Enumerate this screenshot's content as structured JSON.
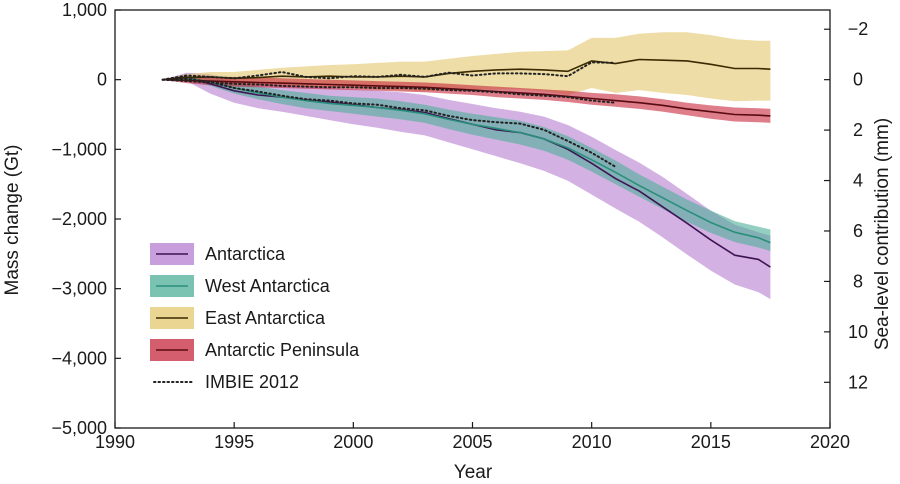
{
  "chart_data": {
    "type": "area",
    "xlabel": "Year",
    "ylabel": "Mass change (Gt)",
    "y2label": "Sea-level contribution (mm)",
    "xlim": [
      1990,
      2020
    ],
    "ylim": [
      -5000,
      1000
    ],
    "x_ticks": [
      1990,
      1995,
      2000,
      2005,
      2010,
      2015,
      2020
    ],
    "y_ticks": [
      1000,
      0,
      -1000,
      -2000,
      -3000,
      -4000,
      -5000
    ],
    "y_tick_labels": [
      "1,000",
      "0",
      "−1,000",
      "−2,000",
      "−3,000",
      "−4,000",
      "−5,000"
    ],
    "y2_ticks": [
      -2,
      0,
      2,
      4,
      6,
      8,
      10,
      12
    ],
    "y2_tick_labels": [
      "−2",
      "0",
      "2",
      "4",
      "6",
      "8",
      "10",
      "12"
    ],
    "y2_gt_per_mm": -362,
    "grid": false,
    "legend_position": "bottom-left",
    "series": [
      {
        "name": "Antarctica",
        "color": "#3d1554",
        "band_color": "#b57fd0",
        "x": [
          1992,
          1993,
          1994,
          1995,
          1996,
          1997,
          1998,
          1999,
          2000,
          2001,
          2002,
          2003,
          2004,
          2005,
          2006,
          2007,
          2008,
          2009,
          2010,
          2011,
          2012,
          2013,
          2014,
          2015,
          2016,
          2017,
          2017.5
        ],
        "values": [
          0,
          40,
          -60,
          -160,
          -220,
          -250,
          -290,
          -320,
          -360,
          -400,
          -430,
          -470,
          -560,
          -640,
          -720,
          -760,
          -850,
          -1000,
          -1200,
          -1420,
          -1600,
          -1830,
          -2060,
          -2300,
          -2520,
          -2580,
          -2690
        ],
        "lower": [
          0,
          -20,
          -200,
          -330,
          -410,
          -460,
          -520,
          -580,
          -640,
          -690,
          -750,
          -800,
          -900,
          -1000,
          -1100,
          -1200,
          -1310,
          -1450,
          -1650,
          -1850,
          -2040,
          -2270,
          -2510,
          -2740,
          -2940,
          -3050,
          -3150
        ],
        "upper": [
          0,
          100,
          80,
          0,
          -40,
          -60,
          -90,
          -120,
          -140,
          -160,
          -180,
          -220,
          -290,
          -350,
          -410,
          -460,
          -530,
          -650,
          -820,
          -1010,
          -1190,
          -1400,
          -1640,
          -1880,
          -2080,
          -2190,
          -2240
        ]
      },
      {
        "name": "West Antarctica",
        "color": "#2a8f7a",
        "band_color": "#4eaf9a",
        "x": [
          1992,
          1993,
          1994,
          1995,
          1996,
          1997,
          1998,
          1999,
          2000,
          2001,
          2002,
          2003,
          2004,
          2005,
          2006,
          2007,
          2008,
          2009,
          2010,
          2011,
          2012,
          2013,
          2014,
          2015,
          2016,
          2017,
          2017.5
        ],
        "values": [
          0,
          20,
          -30,
          -120,
          -190,
          -250,
          -300,
          -340,
          -370,
          -400,
          -440,
          -490,
          -570,
          -640,
          -700,
          -760,
          -850,
          -980,
          -1150,
          -1330,
          -1520,
          -1700,
          -1880,
          -2050,
          -2190,
          -2270,
          -2340
        ],
        "lower": [
          0,
          -10,
          -90,
          -200,
          -280,
          -350,
          -410,
          -450,
          -490,
          -530,
          -570,
          -620,
          -710,
          -790,
          -860,
          -930,
          -1020,
          -1150,
          -1320,
          -1500,
          -1680,
          -1860,
          -2040,
          -2200,
          -2330,
          -2410,
          -2460
        ],
        "upper": [
          0,
          50,
          30,
          -40,
          -100,
          -150,
          -190,
          -230,
          -250,
          -270,
          -310,
          -360,
          -430,
          -490,
          -540,
          -590,
          -680,
          -810,
          -980,
          -1160,
          -1360,
          -1540,
          -1720,
          -1880,
          -2030,
          -2110,
          -2150
        ]
      },
      {
        "name": "East Antarctica",
        "color": "#3a2a00",
        "band_color": "#e3c76d",
        "x": [
          1992,
          1993,
          1994,
          1995,
          1996,
          1997,
          1998,
          1999,
          2000,
          2001,
          2002,
          2003,
          2004,
          2005,
          2006,
          2007,
          2008,
          2009,
          2010,
          2011,
          2012,
          2013,
          2014,
          2015,
          2016,
          2017,
          2017.5
        ],
        "values": [
          0,
          30,
          40,
          20,
          30,
          50,
          40,
          50,
          40,
          40,
          50,
          40,
          90,
          120,
          140,
          150,
          140,
          120,
          270,
          230,
          290,
          280,
          270,
          220,
          160,
          160,
          150
        ],
        "lower": [
          0,
          -20,
          -40,
          -70,
          -80,
          -70,
          -100,
          -110,
          -120,
          -140,
          -150,
          -170,
          -150,
          -140,
          -140,
          -140,
          -170,
          -220,
          -120,
          -190,
          -150,
          -190,
          -220,
          -270,
          -310,
          -300,
          -300
        ],
        "upper": [
          0,
          80,
          110,
          110,
          140,
          170,
          190,
          210,
          220,
          240,
          260,
          260,
          300,
          340,
          370,
          400,
          410,
          420,
          600,
          600,
          660,
          680,
          680,
          640,
          580,
          560,
          560
        ]
      },
      {
        "name": "Antarctic Peninsula",
        "color": "#5a0a12",
        "band_color": "#c6283c",
        "x": [
          1992,
          1993,
          1994,
          1995,
          1996,
          1997,
          1998,
          1999,
          2000,
          2001,
          2002,
          2003,
          2004,
          2005,
          2006,
          2007,
          2008,
          2009,
          2010,
          2011,
          2012,
          2013,
          2014,
          2015,
          2016,
          2017,
          2017.5
        ],
        "values": [
          0,
          -10,
          -20,
          -30,
          -40,
          -50,
          -60,
          -70,
          -80,
          -90,
          -100,
          -110,
          -130,
          -150,
          -170,
          -190,
          -210,
          -240,
          -270,
          -300,
          -330,
          -370,
          -420,
          -460,
          -500,
          -510,
          -520
        ],
        "lower": [
          0,
          -50,
          -80,
          -100,
          -110,
          -120,
          -130,
          -140,
          -150,
          -160,
          -170,
          -180,
          -200,
          -220,
          -250,
          -270,
          -290,
          -320,
          -360,
          -390,
          -420,
          -460,
          -510,
          -560,
          -600,
          -610,
          -620
        ],
        "upper": [
          0,
          30,
          40,
          40,
          30,
          20,
          10,
          0,
          -10,
          -20,
          -30,
          -40,
          -60,
          -80,
          -100,
          -120,
          -140,
          -160,
          -190,
          -210,
          -240,
          -280,
          -330,
          -370,
          -400,
          -410,
          -420
        ]
      },
      {
        "name": "IMBIE 2012",
        "color": "#222222",
        "style": "dotted",
        "subseries": [
          {
            "x": [
              1992,
              1993,
              1994,
              1995,
              1996,
              1997,
              1998,
              1999,
              2000,
              2001,
              2002,
              2003,
              2004,
              2005,
              2006,
              2007,
              2008,
              2009,
              2010,
              2011
            ],
            "values": [
              0,
              60,
              40,
              20,
              60,
              110,
              40,
              20,
              50,
              40,
              70,
              40,
              100,
              60,
              90,
              90,
              80,
              50,
              250,
              240
            ]
          },
          {
            "x": [
              1992,
              1993,
              1994,
              1995,
              1996,
              1997,
              1998,
              1999,
              2000,
              2001,
              2002,
              2003,
              2004,
              2005,
              2006,
              2007,
              2008,
              2009,
              2010,
              2011
            ],
            "values": [
              0,
              -20,
              -40,
              -60,
              -70,
              -90,
              -100,
              -110,
              -110,
              -120,
              -120,
              -130,
              -150,
              -160,
              -180,
              -210,
              -230,
              -250,
              -300,
              -330
            ]
          },
          {
            "x": [
              1992,
              1993,
              1994,
              1995,
              1996,
              1997,
              1998,
              1999,
              2000,
              2001,
              2002,
              2003,
              2004,
              2005,
              2006,
              2007,
              2008,
              2009,
              2010,
              2011
            ],
            "values": [
              0,
              10,
              -30,
              -120,
              -170,
              -230,
              -280,
              -300,
              -340,
              -360,
              -410,
              -440,
              -520,
              -580,
              -610,
              -630,
              -720,
              -880,
              -1050,
              -1250
            ]
          }
        ]
      }
    ]
  }
}
